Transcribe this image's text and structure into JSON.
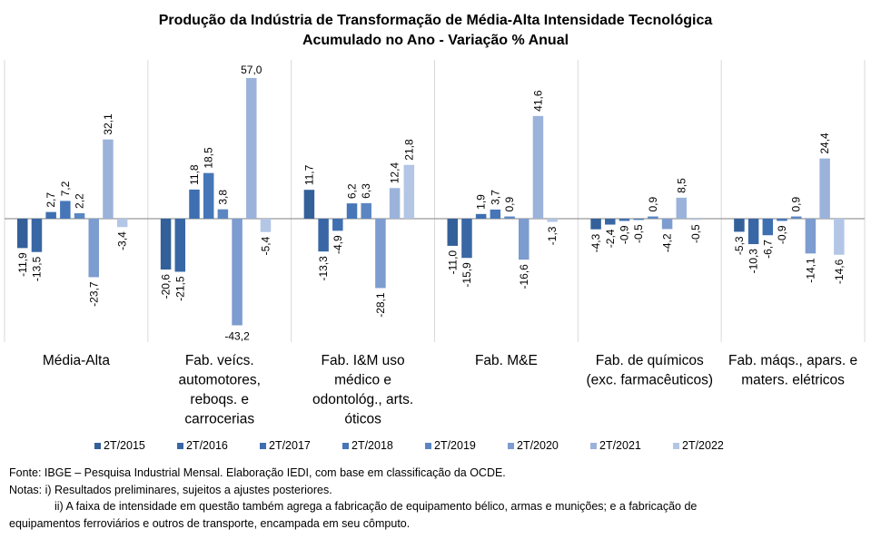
{
  "title_line1": "Produção da Indústria de Transformação de Média-Alta Intensidade Tecnológica",
  "title_line2": "Acumulado no Ano - Variação % Anual",
  "chart_data": {
    "type": "bar",
    "categories": [
      [
        "Média-Alta"
      ],
      [
        "Fab. veícs.",
        "automotores,",
        "reboqs. e",
        "carrocerias"
      ],
      [
        "Fab. I&M uso",
        "médico e",
        "odontológ., arts.",
        "óticos"
      ],
      [
        "Fab. M&E"
      ],
      [
        "Fab. de químicos",
        "(exc. farmacêuticos)"
      ],
      [
        "Fab. máqs., apars. e",
        "maters. elétricos"
      ]
    ],
    "series": [
      {
        "name": "2T/2015",
        "color": "#34609a",
        "values": [
          -11.9,
          -20.6,
          11.7,
          -11.0,
          -4.3,
          -5.3
        ]
      },
      {
        "name": "2T/2016",
        "color": "#3967a5",
        "values": [
          -13.5,
          -21.5,
          -13.3,
          -15.9,
          -2.4,
          -10.3
        ]
      },
      {
        "name": "2T/2017",
        "color": "#3e6fb0",
        "values": [
          2.7,
          11.8,
          -4.9,
          1.9,
          -0.9,
          -6.7
        ]
      },
      {
        "name": "2T/2018",
        "color": "#4676b8",
        "values": [
          7.2,
          18.5,
          6.2,
          3.7,
          -0.5,
          -0.9
        ]
      },
      {
        "name": "2T/2019",
        "color": "#5c86c2",
        "values": [
          2.2,
          3.8,
          6.3,
          0.9,
          0.9,
          0.9
        ]
      },
      {
        "name": "2T/2020",
        "color": "#7d9ccf",
        "values": [
          -23.7,
          -43.2,
          -28.1,
          -16.6,
          -4.2,
          -14.1
        ]
      },
      {
        "name": "2T/2021",
        "color": "#9bb3da",
        "values": [
          32.1,
          57.0,
          12.4,
          41.6,
          8.5,
          24.4
        ]
      },
      {
        "name": "2T/2022",
        "color": "#b3c6e6",
        "values": [
          -3.4,
          -5.4,
          21.8,
          -1.3,
          -0.5,
          -14.6
        ]
      }
    ],
    "ylim": [
      -45,
      60
    ],
    "grid": false,
    "legend_position": "bottom"
  },
  "notes": {
    "source": "Fonte: IBGE – Pesquisa Industrial Mensal. Elaboração IEDI, com base em classificação da OCDE.",
    "note_i": "Notas: i) Resultados preliminares, sujeitos a ajustes posteriores.",
    "note_ii": "ii) A faixa de intensidade em questão também agrega a fabricação de equipamento bélico, armas e munições; e a fabricação de",
    "note_ii_cont": "equipamentos ferroviários e outros de transporte, encampada em seu cômputo."
  }
}
